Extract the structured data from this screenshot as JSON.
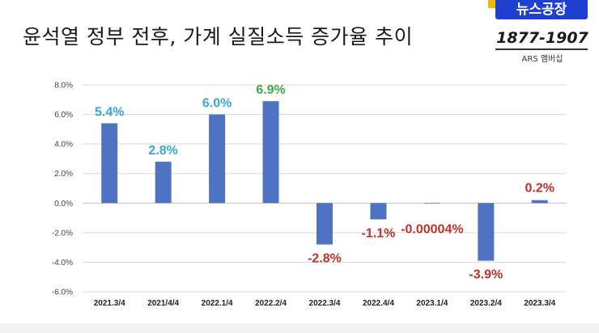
{
  "header": {
    "title": "윤석열 정부 전후, 가계 실질소득 증가율 추이",
    "logo_text": "뉴스공장",
    "phone": "1877-1907",
    "phone_sub": "ARS 멤버십"
  },
  "colors": {
    "bar": "#4f73c3",
    "label_positive_blue": "#3aa6d8",
    "label_positive_green": "#3fa84a",
    "label_negative": "#c0302b",
    "grid": "#d9d9d9",
    "axis": "#bfbfbf"
  },
  "chart_data": {
    "type": "bar",
    "title": "윤석열 정부 전후, 가계 실질소득 증가율 추이",
    "xlabel": "",
    "ylabel": "",
    "ylim": [
      -6.0,
      8.0
    ],
    "yticks": [
      "8.0%",
      "6.0%",
      "4.0%",
      "2.0%",
      "0.0%",
      "-2.0%",
      "-4.0%",
      "-6.0%"
    ],
    "ytick_values": [
      8,
      6,
      4,
      2,
      0,
      -2,
      -4,
      -6
    ],
    "grid": true,
    "categories": [
      "2021.3/4",
      "2021/4/4",
      "2022.1/4",
      "2022.2/4",
      "2022.3/4",
      "2022.4/4",
      "2023.1/4",
      "2023.2/4",
      "2023.3/4"
    ],
    "values": [
      5.4,
      2.8,
      6.0,
      6.9,
      -2.8,
      -1.1,
      -4e-05,
      -3.9,
      0.2
    ],
    "data_labels": [
      "5.4%",
      "2.8%",
      "6.0%",
      "6.9%",
      "-2.8%",
      "-1.1%",
      "-0.00004%",
      "-3.9%",
      "0.2%"
    ],
    "label_colors": [
      "blue",
      "blue",
      "blue",
      "green",
      "red",
      "red",
      "red",
      "red",
      "red"
    ]
  }
}
